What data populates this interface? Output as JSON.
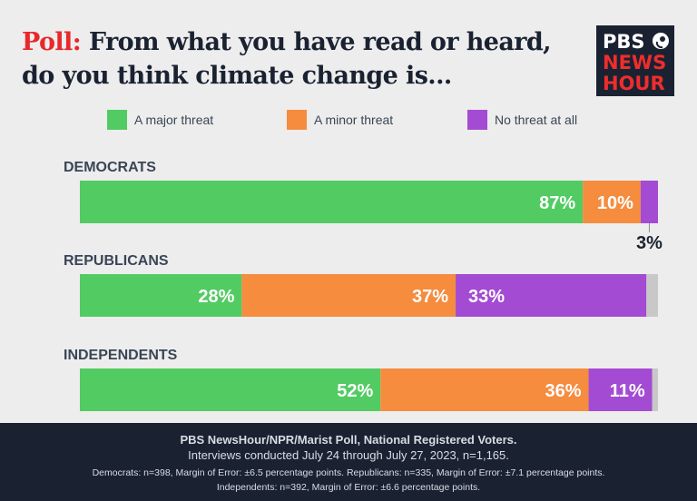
{
  "header": {
    "title_lead": "Poll:",
    "title_rest": "From what you have read or heard, do you think climate change is..."
  },
  "logo": {
    "line1": "PBS",
    "line2": "NEWS",
    "line3": "HOUR"
  },
  "colors": {
    "major": "#52cb63",
    "minor": "#f58c3e",
    "none": "#a34bd3",
    "remainder": "#c8c8c8",
    "text": "#3a4556",
    "title_accent": "#e8282b",
    "navy": "#1a2232"
  },
  "chart_data": {
    "type": "stacked-bar-horizontal",
    "xlim": [
      0,
      100
    ],
    "legend_position": "top",
    "series": [
      {
        "name": "A major threat",
        "color": "#52cb63"
      },
      {
        "name": "A minor threat",
        "color": "#f58c3e"
      },
      {
        "name": "No threat at all",
        "color": "#a34bd3"
      }
    ],
    "categories": [
      "DEMOCRATS",
      "REPUBLICANS",
      "INDEPENDENTS"
    ],
    "values": [
      [
        87,
        10,
        3
      ],
      [
        28,
        37,
        33
      ],
      [
        52,
        36,
        11
      ]
    ],
    "labels": [
      [
        "87%",
        "10%",
        "3%"
      ],
      [
        "28%",
        "37%",
        "33%"
      ],
      [
        "52%",
        "36%",
        "11%"
      ]
    ]
  },
  "footer": {
    "line1": "PBS NewsHour/NPR/Marist Poll, National Registered Voters.",
    "line2": "Interviews conducted July 24 through July 27, 2023, n=1,165.",
    "line3": "Democrats: n=398, Margin of Error: ±6.5 percentage points. Republicans: n=335, Margin of Error: ±7.1 percentage points.",
    "line4": "Independents: n=392, Margin of Error: ±6.6 percentage points."
  }
}
